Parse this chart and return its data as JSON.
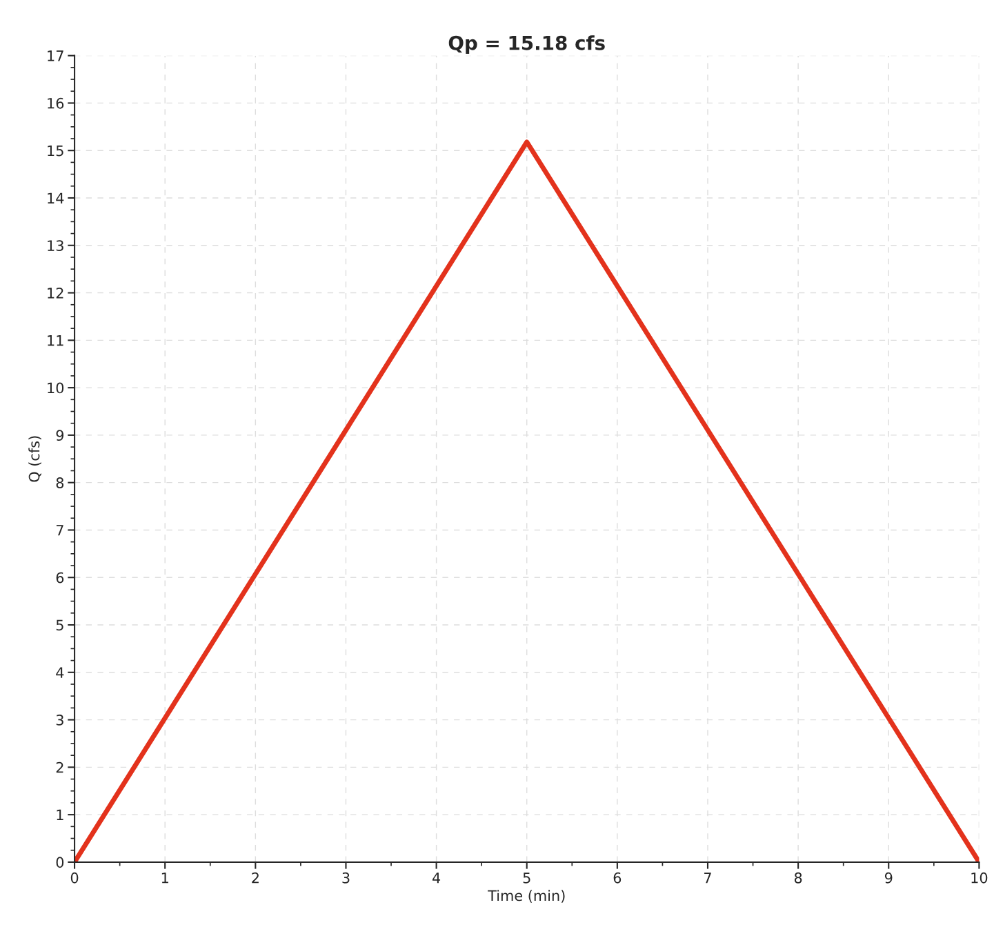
{
  "chart_data": {
    "type": "line",
    "title": "Qp = 15.18 cfs",
    "xlabel": "Time (min)",
    "ylabel": "Q (cfs)",
    "x": [
      0,
      5,
      10
    ],
    "series": [
      {
        "color": "#e3321c",
        "values": [
          0,
          15.18,
          0
        ]
      }
    ],
    "xlim": [
      0,
      10
    ],
    "xticks": [
      0,
      1,
      2,
      3,
      4,
      5,
      6,
      7,
      8,
      9,
      10
    ],
    "ylim": [
      0,
      17
    ],
    "yticks": [
      0,
      1,
      2,
      3,
      4,
      5,
      6,
      7,
      8,
      9,
      10,
      11,
      12,
      13,
      14,
      15,
      16,
      17
    ],
    "grid": true,
    "marker": "none",
    "line_style": "solid",
    "legend": false
  }
}
